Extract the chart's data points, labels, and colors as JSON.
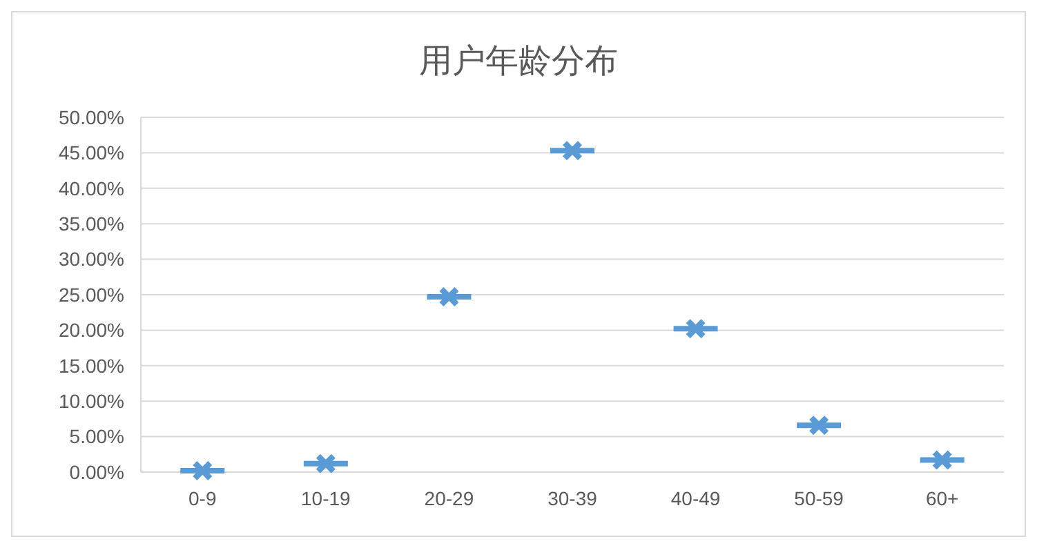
{
  "chart_data": {
    "type": "scatter",
    "title": "用户年龄分布",
    "categories": [
      "0-9",
      "10-19",
      "20-29",
      "30-39",
      "40-49",
      "50-59",
      "60+"
    ],
    "series": [
      {
        "color": "#5b9bd5",
        "values": [
          0.2,
          1.2,
          24.7,
          45.3,
          20.2,
          6.6,
          1.7
        ]
      }
    ],
    "ylim": [
      0,
      50
    ],
    "yticks": [
      {
        "value": 0,
        "label": "0.00%"
      },
      {
        "value": 5,
        "label": "5.00%"
      },
      {
        "value": 10,
        "label": "10.00%"
      },
      {
        "value": 15,
        "label": "15.00%"
      },
      {
        "value": 20,
        "label": "20.00%"
      },
      {
        "value": 25,
        "label": "25.00%"
      },
      {
        "value": 30,
        "label": "30.00%"
      },
      {
        "value": 35,
        "label": "35.00%"
      },
      {
        "value": 40,
        "label": "40.00%"
      },
      {
        "value": 45,
        "label": "45.00%"
      },
      {
        "value": 50,
        "label": "50.00%"
      }
    ],
    "grid": "y",
    "marker": "cross"
  }
}
